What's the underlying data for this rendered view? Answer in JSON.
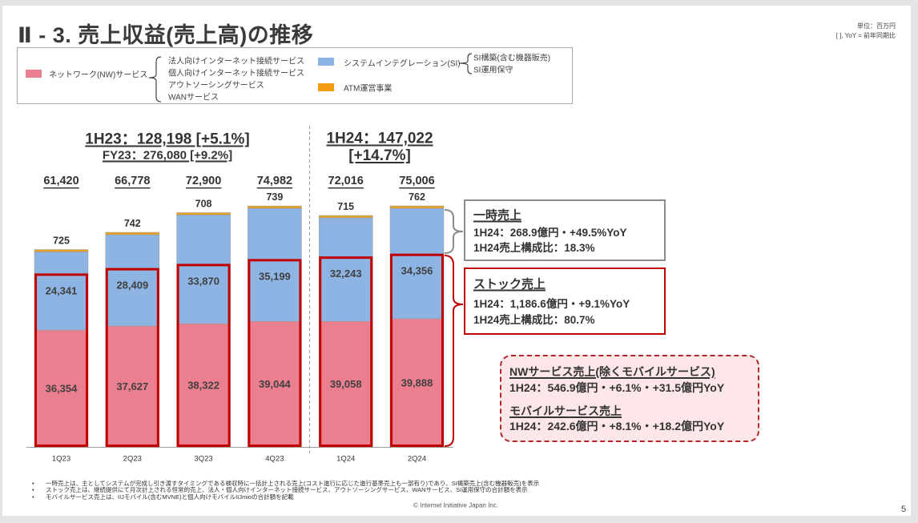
{
  "slide": {
    "title": "Ⅱ - 3.  売上収益(売上高)の推移",
    "unit_note": "単位：百万円",
    "bracket_note": "[ ], YoY = 前年同期比",
    "copyright": "© Internet Initiative Japan Inc.",
    "page_number": "5"
  },
  "legend": {
    "nw": {
      "label": "ネットワーク(NW)サービス",
      "items": [
        "法人向けインターネット接続サービス",
        "個人向けインターネット接続サービス",
        "アウトソーシングサービス",
        "WANサービス"
      ]
    },
    "si": {
      "label": "システムインテグレーション(SI)",
      "items": [
        "SI構築(含む機器販売)",
        "SI運用保守"
      ]
    },
    "atm": {
      "label": "ATM運営事業"
    }
  },
  "period_headers": {
    "h1_23": {
      "main": "1H23：128,198 [+5.1%]",
      "sub": "FY23：276,080 [+9.2%]"
    },
    "h1_24": {
      "main": "1H24：147,022",
      "sub": "[+14.7%]"
    }
  },
  "callouts": {
    "temporary": {
      "title": "一時売上",
      "line1": "1H24：268.9億円・+49.5%YoY",
      "line2": "1H24売上構成比：18.3%"
    },
    "stock": {
      "title": "ストック売上",
      "line1": "1H24：1,186.6億円・+9.1%YoY",
      "line2": "1H24売上構成比：80.7%"
    },
    "nw_mobile": {
      "nw_title": "NWサービス売上(除くモバイルサービス)",
      "nw_value": "1H24：546.9億円・+6.1%・+31.5億円YoY",
      "mobile_title": "モバイルサービス売上",
      "mobile_value": "1H24：242.6億円・+8.1%・+18.2億円YoY"
    }
  },
  "footnotes": [
    "一時売上は、主としてシステムが完成し引き渡すタイミングである検収時に一括計上される売上(コスト進行に応じた進行基準売上も一部有り)であり、SI構築売上(含む機器販売)を表示",
    "ストック売上は、継続提供にて月次計上される恒常的売上、法人・個人向けインターネット接続サービス、アウトソーシングサービス、WANサービス、SI運用保守の合計額を表示",
    "モバイルサービス売上は、IIJモバイル(含むMVNE)と個人向けモバイルIIJmioの合計額を記載"
  ],
  "footnote_bullet": "•",
  "colors": {
    "nw": "#ec7f8f",
    "si": "#8db4e2",
    "atm": "#e5a224",
    "stock": "#c00000",
    "temporary": "#8c8c8c"
  },
  "chart_data": {
    "type": "bar",
    "stacked": true,
    "title": "売上収益(売上高)の推移",
    "unit": "百万円",
    "categories": [
      "1Q23",
      "2Q23",
      "3Q23",
      "4Q23",
      "1Q24",
      "2Q24"
    ],
    "series": [
      {
        "key": "nw",
        "name": "ネットワーク(NW)サービス",
        "values": [
          36354,
          37627,
          38322,
          39044,
          39058,
          39888
        ]
      },
      {
        "key": "si",
        "name": "システムインテグレーション(SI)",
        "values": [
          24341,
          28409,
          33870,
          35199,
          32243,
          34356
        ]
      },
      {
        "key": "atm",
        "name": "ATM運営事業",
        "values": [
          725,
          742,
          708,
          739,
          715,
          762
        ]
      }
    ],
    "totals": [
      61420,
      66778,
      72900,
      74982,
      72016,
      75006
    ],
    "stock_estimated": [
      53600,
      55300,
      56600,
      58100,
      58900,
      59760
    ],
    "data_labels": {
      "nw": [
        "36,354",
        "37,627",
        "38,322",
        "39,044",
        "39,058",
        "39,888"
      ],
      "si": [
        "24,341",
        "28,409",
        "33,870",
        "35,199",
        "32,243",
        "34,356"
      ],
      "atm": [
        "725",
        "742",
        "708",
        "739",
        "715",
        "762"
      ],
      "totals": [
        "61,420",
        "66,778",
        "72,900",
        "74,982",
        "72,016",
        "75,006"
      ]
    },
    "period_summaries": [
      {
        "period": "1H23",
        "total": 128198,
        "yoy": "+5.1%"
      },
      {
        "period": "FY23",
        "total": 276080,
        "yoy": "+9.2%"
      },
      {
        "period": "1H24",
        "total": 147022,
        "yoy": "+14.7%"
      }
    ],
    "xlabel": "",
    "ylabel": "",
    "ylim": [
      0,
      80000
    ],
    "grid": false,
    "legend": "top"
  }
}
